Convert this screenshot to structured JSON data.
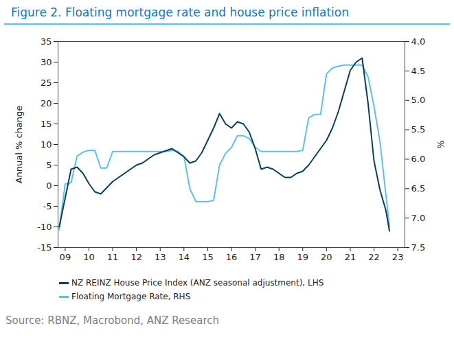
{
  "chart_data": {
    "type": "line",
    "title": "Figure 2. Floating mortgage rate and house price inflation",
    "y_label": "Annual % change",
    "y2_label": "%",
    "source": "Source: RBNZ, Macrobond, ANZ Research",
    "x": [
      2008.75,
      2009.0,
      2009.25,
      2009.5,
      2009.75,
      2010.0,
      2010.25,
      2010.5,
      2010.75,
      2011.0,
      2011.25,
      2011.5,
      2011.75,
      2012.0,
      2012.25,
      2012.5,
      2012.75,
      2013.0,
      2013.25,
      2013.5,
      2013.75,
      2014.0,
      2014.25,
      2014.5,
      2014.75,
      2015.0,
      2015.25,
      2015.5,
      2015.75,
      2016.0,
      2016.25,
      2016.5,
      2016.75,
      2017.0,
      2017.25,
      2017.5,
      2017.75,
      2018.0,
      2018.25,
      2018.5,
      2018.75,
      2019.0,
      2019.25,
      2019.5,
      2019.75,
      2020.0,
      2020.25,
      2020.5,
      2020.75,
      2021.0,
      2021.25,
      2021.5,
      2021.75,
      2022.0,
      2022.25,
      2022.5,
      2022.65
    ],
    "series": [
      {
        "name": "NZ REINZ House Price Index (ANZ seasonal adjustment), LHS",
        "color": "#0b3d5c",
        "axis": "y",
        "values": [
          -10,
          -3,
          4,
          4.5,
          3,
          0.5,
          -1.5,
          -2,
          -0.5,
          1,
          2,
          3,
          4,
          5,
          5.5,
          6.5,
          7.5,
          8,
          8.5,
          9,
          8,
          7,
          5.5,
          6,
          8,
          11,
          14,
          17.5,
          15,
          14,
          15.5,
          15,
          13,
          9,
          4,
          4.5,
          4,
          3,
          2,
          2,
          3,
          3.5,
          5,
          7,
          9,
          11,
          14,
          18,
          23,
          28,
          30,
          31,
          20,
          6,
          -1,
          -6,
          -11
        ]
      },
      {
        "name": "Floating Mortgage Rate, RHS",
        "color": "#5bc2e7",
        "axis": "y2",
        "values": [
          7.2,
          6.42,
          6.4,
          5.95,
          5.88,
          5.85,
          5.85,
          6.15,
          6.15,
          5.87,
          5.87,
          5.87,
          5.87,
          5.87,
          5.87,
          5.87,
          5.87,
          5.87,
          5.87,
          5.85,
          5.87,
          5.95,
          6.5,
          6.72,
          6.72,
          6.72,
          6.7,
          6.1,
          5.9,
          5.8,
          5.6,
          5.6,
          5.65,
          5.8,
          5.87,
          5.87,
          5.87,
          5.87,
          5.87,
          5.87,
          5.87,
          5.85,
          5.3,
          5.24,
          5.24,
          4.55,
          4.45,
          4.42,
          4.4,
          4.4,
          4.4,
          4.4,
          4.6,
          5.1,
          5.7,
          6.6,
          7.15
        ]
      }
    ],
    "xlim": [
      2008.7,
      2023.3
    ],
    "xticks": [
      {
        "value": 2009,
        "label": "09"
      },
      {
        "value": 2010,
        "label": "10"
      },
      {
        "value": 2011,
        "label": "11"
      },
      {
        "value": 2012,
        "label": "12"
      },
      {
        "value": 2013,
        "label": "13"
      },
      {
        "value": 2014,
        "label": "14"
      },
      {
        "value": 2015,
        "label": "15"
      },
      {
        "value": 2016,
        "label": "16"
      },
      {
        "value": 2017,
        "label": "17"
      },
      {
        "value": 2018,
        "label": "18"
      },
      {
        "value": 2019,
        "label": "19"
      },
      {
        "value": 2020,
        "label": "20"
      },
      {
        "value": 2021,
        "label": "21"
      },
      {
        "value": 2022,
        "label": "22"
      },
      {
        "value": 2023,
        "label": "23"
      }
    ],
    "ylim": [
      -15,
      35
    ],
    "yticks": [
      -15,
      -10,
      -5,
      0,
      5,
      10,
      15,
      20,
      25,
      30,
      35
    ],
    "y2lim": [
      7.5,
      4
    ],
    "y2ticks": [
      {
        "value": 4,
        "label": "4.0"
      },
      4.5,
      {
        "value": 5,
        "label": "5.0"
      },
      5.5,
      {
        "value": 6,
        "label": "6.0"
      },
      6.5,
      {
        "value": 7,
        "label": "7.0"
      },
      7.5
    ],
    "legend": "bottom"
  }
}
